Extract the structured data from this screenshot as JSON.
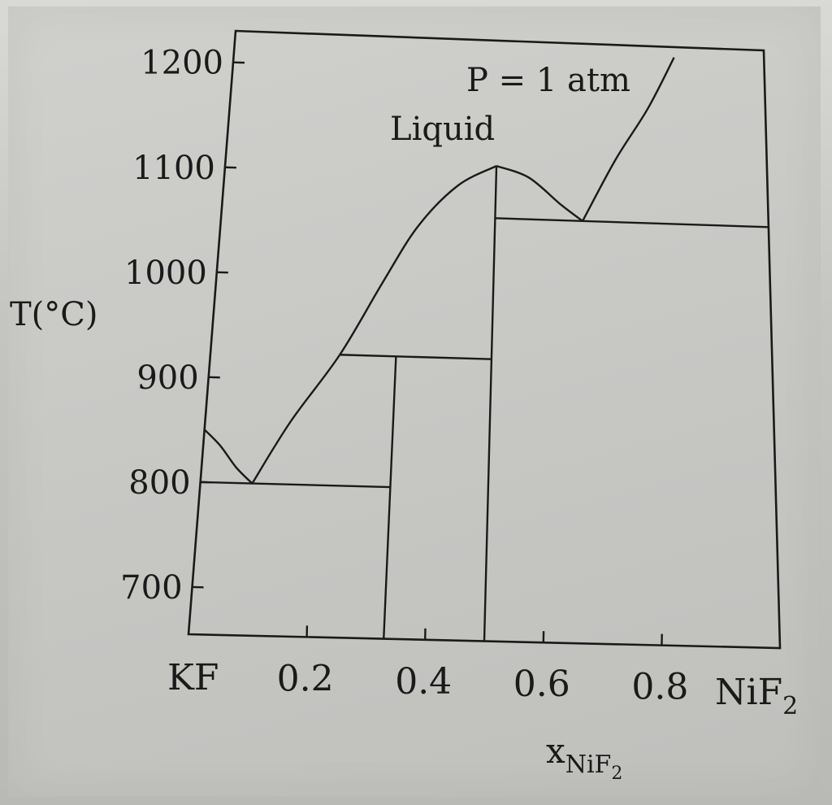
{
  "chart_data": {
    "type": "phase-diagram",
    "title": "",
    "condition": "P = 1 atm",
    "region_label": "Liquid",
    "ylabel": "T(°C)",
    "xlabel_main": "x",
    "xlabel_sub": "NiF",
    "xlabel_subsub": "2",
    "xlim": [
      0,
      1
    ],
    "ylim": [
      655,
      1230
    ],
    "yticks": [
      700,
      800,
      900,
      1000,
      1100,
      1200
    ],
    "xticks": [
      0.2,
      0.4,
      0.6,
      0.8
    ],
    "x_end_labels": {
      "left": "KF",
      "right_main": "NiF",
      "right_sub": "2"
    },
    "liquidus": [
      {
        "name": "KF-liquidus",
        "points": [
          [
            0,
            850
          ],
          [
            0.03,
            835
          ],
          [
            0.06,
            815
          ],
          [
            0.09,
            800
          ]
        ]
      },
      {
        "name": "compound1-liquidus",
        "points": [
          [
            0.09,
            800
          ],
          [
            0.15,
            860
          ],
          [
            0.23,
            925
          ],
          [
            0.3,
            995
          ],
          [
            0.36,
            1050
          ],
          [
            0.43,
            1090
          ],
          [
            0.5,
            1110
          ]
        ]
      },
      {
        "name": "compound2-liquidus",
        "points": [
          [
            0.5,
            1110
          ],
          [
            0.56,
            1100
          ],
          [
            0.62,
            1075
          ],
          [
            0.66,
            1060
          ]
        ]
      },
      {
        "name": "NiF2-liquidus",
        "points": [
          [
            0.66,
            1060
          ],
          [
            0.72,
            1120
          ],
          [
            0.78,
            1170
          ],
          [
            0.83,
            1220
          ]
        ]
      }
    ],
    "eutectics": [
      {
        "name": "eutectic-1",
        "temperature": 800,
        "x_start": 0,
        "x_end": 0.33
      },
      {
        "name": "peritectic",
        "temperature": 925,
        "x_start": 0.23,
        "x_end": 0.5
      },
      {
        "name": "eutectic-2",
        "temperature": 1060,
        "x_start": 0.5,
        "x_end": 1.0
      }
    ],
    "compounds": [
      {
        "name": "compound-KF2NiF2",
        "x": 0.33,
        "t_top": 925
      },
      {
        "name": "compound-KNiF3",
        "x": 0.5,
        "t_top": 1110
      }
    ]
  }
}
